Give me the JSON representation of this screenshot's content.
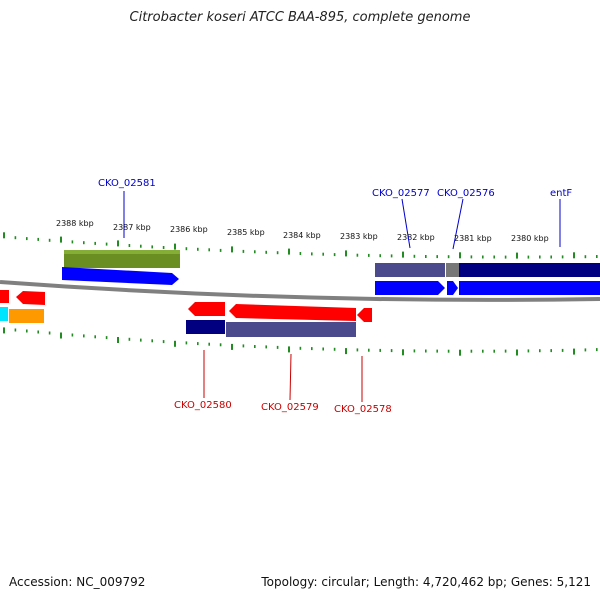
{
  "title": "Citrobacter koseri ATCC BAA-895, complete genome",
  "footer": {
    "accession": "Accession: NC_009792",
    "summary": "Topology: circular; Length: 4,720,462 bp; Genes: 5,121"
  },
  "scale": {
    "ticks_kbp": [
      "2388 kbp",
      "2387 kbp",
      "2386 kbp",
      "2385 kbp",
      "2384 kbp",
      "2383 kbp",
      "2382 kbp",
      "2381 kbp",
      "2380 kbp"
    ]
  },
  "gene_labels": {
    "top": [
      {
        "label": "CKO_02581",
        "color": "#0000cc"
      },
      {
        "label": "CKO_02577",
        "color": "#0000cc"
      },
      {
        "label": "CKO_02576",
        "color": "#0000cc"
      },
      {
        "label": "entF",
        "color": "#0000cc"
      }
    ],
    "bottom": [
      {
        "label": "CKO_02580",
        "color": "#cc0000"
      },
      {
        "label": "CKO_02579",
        "color": "#cc0000"
      },
      {
        "label": "CKO_02578",
        "color": "#cc0000"
      }
    ]
  },
  "colors": {
    "forward_cds": "#0000ff",
    "reverse_cds": "#ff0000",
    "dark_blue": "#000080",
    "slate": "#4a4a8c",
    "olive": "#6b8e23",
    "orange": "#ff9900",
    "cyan": "#00e5ff",
    "backbone": "#808080",
    "tick": "#228b22"
  }
}
